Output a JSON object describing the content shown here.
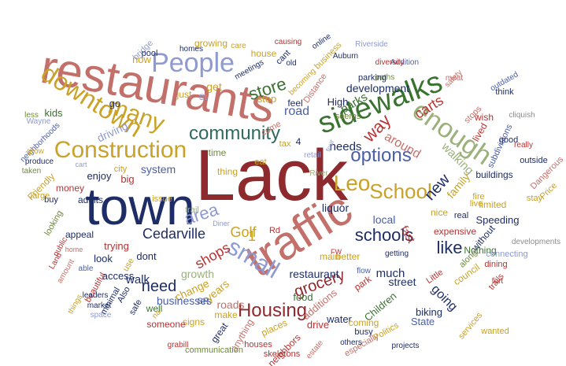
{
  "palette": {
    "red": "#b83232",
    "rose": "#c4706a",
    "darkred": "#8e2a2e",
    "navy": "#1e2d66",
    "blue": "#4a5fa8",
    "periwinkle": "#8f9ad0",
    "gold": "#c9a227",
    "tan": "#b99546",
    "green": "#3a7230",
    "olive": "#6f8a3a",
    "sage": "#9bb07a",
    "teal": "#2f6a5e",
    "gray": "#8d8d8d"
  },
  "words": [
    {
      "text": "Lack",
      "color": "darkred"
    },
    {
      "text": "town",
      "color": "navy"
    },
    {
      "text": "restaurants",
      "color": "rose"
    },
    {
      "text": "traffic",
      "color": "rose"
    },
    {
      "text": "sidewalks",
      "color": "green"
    },
    {
      "text": "enough",
      "color": "sage"
    },
    {
      "text": "People",
      "color": "periwinkle"
    },
    {
      "text": "downtown",
      "color": "gold"
    },
    {
      "text": "Construction",
      "color": "gold"
    },
    {
      "text": "many",
      "color": "gold"
    },
    {
      "text": "community",
      "color": "teal"
    },
    {
      "text": "School",
      "color": "gold"
    },
    {
      "text": "Leo",
      "color": "gold"
    },
    {
      "text": "small",
      "color": "periwinkle"
    },
    {
      "text": "schools",
      "color": "navy"
    },
    {
      "text": "Housing",
      "color": "darkred"
    },
    {
      "text": "options",
      "color": "blue"
    },
    {
      "text": "store",
      "color": "green"
    },
    {
      "text": "area",
      "color": "periwinkle"
    },
    {
      "text": "Golf",
      "color": "gold"
    },
    {
      "text": "grocery",
      "color": "darkred"
    },
    {
      "text": "need",
      "color": "navy"
    },
    {
      "text": "shops",
      "color": "red"
    },
    {
      "text": "Cedarville",
      "color": "navy"
    },
    {
      "text": "like",
      "color": "navy"
    },
    {
      "text": "new",
      "color": "navy"
    },
    {
      "text": "way",
      "color": "red"
    },
    {
      "text": "carts",
      "color": "red"
    },
    {
      "text": "road",
      "color": "blue"
    },
    {
      "text": "around",
      "color": "rose"
    },
    {
      "text": "needs",
      "color": "navy"
    },
    {
      "text": "growth",
      "color": "sage"
    },
    {
      "text": "going",
      "color": "navy"
    },
    {
      "text": "much",
      "color": "navy"
    },
    {
      "text": "get",
      "color": "gold"
    },
    {
      "text": "liquor",
      "color": "navy"
    },
    {
      "text": "local",
      "color": "blue"
    },
    {
      "text": "fast",
      "color": "red"
    },
    {
      "text": "street",
      "color": "navy"
    },
    {
      "text": "development",
      "color": "navy"
    },
    {
      "text": "parks",
      "color": "green"
    },
    {
      "text": "walking",
      "color": "sage"
    },
    {
      "text": "family",
      "color": "gold"
    },
    {
      "text": "driving",
      "color": "periwinkle"
    },
    {
      "text": "stop",
      "color": "gold"
    },
    {
      "text": "walk",
      "color": "navy"
    },
    {
      "text": "change",
      "color": "gold"
    },
    {
      "text": "roads",
      "color": "rose"
    },
    {
      "text": "businesses",
      "color": "blue"
    },
    {
      "text": "years",
      "color": "gold"
    },
    {
      "text": "restaurant",
      "color": "navy"
    },
    {
      "text": "access",
      "color": "navy"
    },
    {
      "text": "food",
      "color": "green"
    },
    {
      "text": "water",
      "color": "navy"
    },
    {
      "text": "State",
      "color": "blue"
    },
    {
      "text": "Children",
      "color": "green"
    },
    {
      "text": "additions",
      "color": "rose"
    },
    {
      "text": "coming",
      "color": "gold"
    },
    {
      "text": "drive",
      "color": "red"
    },
    {
      "text": "biking",
      "color": "navy"
    },
    {
      "text": "places",
      "color": "gold"
    },
    {
      "text": "make",
      "color": "gold"
    },
    {
      "text": "great",
      "color": "navy"
    },
    {
      "text": "signs",
      "color": "gold"
    },
    {
      "text": "houses",
      "color": "red"
    },
    {
      "text": "busy",
      "color": "navy"
    },
    {
      "text": "especially",
      "color": "rose"
    },
    {
      "text": "council",
      "color": "gold"
    },
    {
      "text": "Little",
      "color": "red"
    },
    {
      "text": "Speeding",
      "color": "navy"
    },
    {
      "text": "expensive",
      "color": "red"
    },
    {
      "text": "limited",
      "color": "gold"
    },
    {
      "text": "buildings",
      "color": "navy"
    },
    {
      "text": "subdivisions",
      "color": "blue"
    },
    {
      "text": "lived",
      "color": "red"
    },
    {
      "text": "stops",
      "color": "rose"
    },
    {
      "text": "wish",
      "color": "red"
    },
    {
      "text": "think",
      "color": "navy"
    },
    {
      "text": "nice",
      "color": "gold"
    },
    {
      "text": "High",
      "color": "navy"
    },
    {
      "text": "seems",
      "color": "olive"
    },
    {
      "text": "feel",
      "color": "navy"
    },
    {
      "text": "come",
      "color": "rose"
    },
    {
      "text": "eat",
      "color": "gold"
    },
    {
      "text": "tax",
      "color": "gold"
    },
    {
      "text": "thing",
      "color": "gold"
    },
    {
      "text": "time",
      "color": "olive"
    },
    {
      "text": "trail",
      "color": "sage"
    },
    {
      "text": "issue",
      "color": "gold"
    },
    {
      "text": "just",
      "color": "gold"
    },
    {
      "text": "St",
      "color": "periwinkle"
    },
    {
      "text": "go",
      "color": "navy"
    },
    {
      "text": "kids",
      "color": "green"
    },
    {
      "text": "money",
      "color": "red"
    },
    {
      "text": "enjoy",
      "color": "navy"
    },
    {
      "text": "city",
      "color": "gold"
    },
    {
      "text": "big",
      "color": "red"
    },
    {
      "text": "system",
      "color": "blue"
    },
    {
      "text": "look",
      "color": "navy"
    },
    {
      "text": "trying",
      "color": "red"
    },
    {
      "text": "dont",
      "color": "navy"
    },
    {
      "text": "use",
      "color": "gold"
    },
    {
      "text": "safe",
      "color": "navy"
    },
    {
      "text": "well",
      "color": "green"
    },
    {
      "text": "someone",
      "color": "red"
    },
    {
      "text": "anything",
      "color": "rose"
    },
    {
      "text": "communication",
      "color": "olive"
    },
    {
      "text": "neighbors",
      "color": "red"
    },
    {
      "text": "skeletons",
      "color": "red"
    },
    {
      "text": "others",
      "color": "navy"
    },
    {
      "text": "projects",
      "color": "navy"
    },
    {
      "text": "Politics",
      "color": "gold"
    },
    {
      "text": "services",
      "color": "gold"
    },
    {
      "text": "wanted",
      "color": "gold"
    },
    {
      "text": "fort",
      "color": "red"
    },
    {
      "text": "dining",
      "color": "red"
    },
    {
      "text": "trails",
      "color": "red"
    },
    {
      "text": "along",
      "color": "olive"
    },
    {
      "text": "better",
      "color": "gold"
    },
    {
      "text": "main",
      "color": "gold"
    },
    {
      "text": "getting",
      "color": "navy"
    },
    {
      "text": "flow",
      "color": "blue"
    },
    {
      "text": "park",
      "color": "red"
    },
    {
      "text": "real",
      "color": "navy"
    },
    {
      "text": "live",
      "color": "gold"
    },
    {
      "text": "fire",
      "color": "gold"
    },
    {
      "text": "without",
      "color": "navy"
    },
    {
      "text": "Nothing",
      "color": "green"
    },
    {
      "text": "connecting",
      "color": "periwinkle"
    },
    {
      "text": "developments",
      "color": "gray"
    },
    {
      "text": "stay",
      "color": "gold"
    },
    {
      "text": "Price",
      "color": "gold"
    },
    {
      "text": "Dangerous",
      "color": "rose"
    },
    {
      "text": "outside",
      "color": "navy"
    },
    {
      "text": "really",
      "color": "red"
    },
    {
      "text": "good",
      "color": "navy"
    },
    {
      "text": "cliquish",
      "color": "gray"
    },
    {
      "text": "outdated",
      "color": "blue"
    },
    {
      "text": "meat",
      "color": "rose"
    },
    {
      "text": "safety",
      "color": "rose"
    },
    {
      "text": "Addition",
      "color": "blue"
    },
    {
      "text": "diversity",
      "color": "red"
    },
    {
      "text": "paths",
      "color": "olive"
    },
    {
      "text": "parking",
      "color": "navy"
    },
    {
      "text": "Auburn",
      "color": "navy"
    },
    {
      "text": "Riverside",
      "color": "periwinkle"
    },
    {
      "text": "online",
      "color": "navy"
    },
    {
      "text": "business",
      "color": "gold"
    },
    {
      "text": "becoming",
      "color": "gold"
    },
    {
      "text": "Distance",
      "color": "rose"
    },
    {
      "text": "retail",
      "color": "periwinkle"
    },
    {
      "text": "River",
      "color": "sage"
    },
    {
      "text": "four",
      "color": "periwinkle"
    },
    {
      "text": "cant",
      "color": "navy"
    },
    {
      "text": "causing",
      "color": "red"
    },
    {
      "text": "old",
      "color": "navy"
    },
    {
      "text": "house",
      "color": "gold"
    },
    {
      "text": "care",
      "color": "gold"
    },
    {
      "text": "meetings",
      "color": "navy"
    },
    {
      "text": "growing",
      "color": "gold"
    },
    {
      "text": "homes",
      "color": "navy"
    },
    {
      "text": "bridge",
      "color": "periwinkle"
    },
    {
      "text": "pool",
      "color": "navy"
    },
    {
      "text": "now",
      "color": "gold"
    },
    {
      "text": "appeal",
      "color": "navy"
    },
    {
      "text": "looking",
      "color": "olive"
    },
    {
      "text": "Friendly",
      "color": "gold"
    },
    {
      "text": "adults",
      "color": "navy"
    },
    {
      "text": "buy",
      "color": "navy"
    },
    {
      "text": "large",
      "color": "gold"
    },
    {
      "text": "public",
      "color": "red"
    },
    {
      "text": "Land",
      "color": "red"
    },
    {
      "text": "home",
      "color": "rose"
    },
    {
      "text": "amount",
      "color": "rose"
    },
    {
      "text": "able",
      "color": "blue"
    },
    {
      "text": "beautiful",
      "color": "red"
    },
    {
      "text": "leaders",
      "color": "navy"
    },
    {
      "text": "market",
      "color": "navy"
    },
    {
      "text": "space",
      "color": "periwinkle"
    },
    {
      "text": "things",
      "color": "gold"
    },
    {
      "text": "minimal",
      "color": "navy"
    },
    {
      "text": "Also",
      "color": "navy"
    },
    {
      "text": "grabill",
      "color": "red"
    },
    {
      "text": "estate",
      "color": "rose"
    },
    {
      "text": "SR",
      "color": "blue"
    },
    {
      "text": "Rd",
      "color": "red"
    },
    {
      "text": "Diner",
      "color": "periwinkle"
    },
    {
      "text": "FW",
      "color": "red"
    },
    {
      "text": "1",
      "color": "gold"
    },
    {
      "text": "4",
      "color": "navy"
    },
    {
      "text": "na",
      "color": "gold"
    },
    {
      "text": "cart",
      "color": "periwinkle"
    },
    {
      "text": "Wayne",
      "color": "periwinkle"
    },
    {
      "text": "less",
      "color": "olive"
    },
    {
      "text": "neighborhoods",
      "color": "blue"
    },
    {
      "text": "grow",
      "color": "gold"
    },
    {
      "text": "produce",
      "color": "navy"
    },
    {
      "text": "taken",
      "color": "olive"
    }
  ]
}
